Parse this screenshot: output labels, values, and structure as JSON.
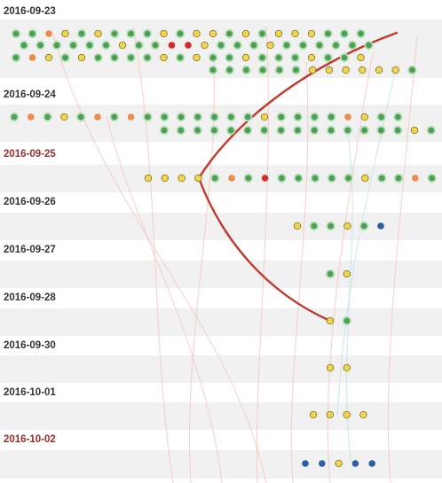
{
  "colors": {
    "green": "#4ca054",
    "green_halo": "#b9dfbb",
    "yellow": "#f1d54a",
    "orange": "#ec8a4f",
    "red": "#d62a2a",
    "blue": "#2a5ea8",
    "date_normal": "#333333",
    "date_weekend": "#9a2e2e",
    "band": "#f1f1f1",
    "highlight_path": "#c0392b",
    "faint_link": "#f3c6bf",
    "faint_link_blue": "#bfe3ea"
  },
  "days": [
    {
      "date": "2016-09-23",
      "weekend": false,
      "rows": [
        [
          "g",
          "g",
          "o",
          "y",
          "g",
          "y",
          "g",
          "g",
          "g",
          "y",
          "g",
          "y",
          "y",
          "g",
          "y",
          "g",
          "y",
          "y",
          "y",
          "g",
          "g",
          "g"
        ],
        [
          "g",
          "g",
          "g",
          "g",
          "g",
          "g",
          "y",
          "g",
          "g",
          "r",
          "r",
          "y",
          "g",
          "g",
          "g",
          "y",
          "g",
          "g",
          "g",
          "g",
          "g",
          "g"
        ],
        [
          "g",
          "o",
          "y",
          "g",
          "y",
          "g",
          "g",
          "g",
          "g",
          "y",
          "g",
          "y",
          "g",
          "g",
          "y",
          "g",
          "g",
          "g",
          "y",
          "g",
          "g",
          "y"
        ],
        [
          "g",
          "g",
          "g",
          "g",
          "g",
          "g",
          "y",
          "y",
          "y",
          "y",
          "y",
          "y",
          "g"
        ]
      ]
    },
    {
      "date": "2016-09-24",
      "weekend": false,
      "rows": [
        [
          "g",
          "o",
          "g",
          "y",
          "g",
          "o",
          "g",
          "o",
          "g",
          "g",
          "g",
          "g",
          "g",
          "g",
          "g",
          "y",
          "g",
          "g",
          "g",
          "g",
          "o",
          "y",
          "g",
          "g"
        ],
        [
          "g",
          "g",
          "g",
          "g",
          "g",
          "g",
          "g",
          "g",
          "g",
          "g",
          "g",
          "g",
          "g",
          "g",
          "g",
          "y",
          "g"
        ]
      ]
    },
    {
      "date": "2016-09-25",
      "weekend": true,
      "rows": [
        [
          "y",
          "y",
          "y",
          "y",
          "g",
          "o",
          "g",
          "r",
          "g",
          "g",
          "g",
          "g",
          "g",
          "y",
          "g",
          "g",
          "o",
          "g"
        ]
      ]
    },
    {
      "date": "2016-09-26",
      "weekend": false,
      "rows": [
        [
          "y",
          "g",
          "g",
          "y",
          "g",
          "b"
        ]
      ]
    },
    {
      "date": "2016-09-27",
      "weekend": false,
      "rows": [
        [
          "g",
          "y"
        ]
      ]
    },
    {
      "date": "2016-09-28",
      "weekend": false,
      "rows": [
        [
          "y",
          "g"
        ]
      ]
    },
    {
      "date": "2016-09-30",
      "weekend": false,
      "rows": [
        [
          "y",
          "y"
        ]
      ]
    },
    {
      "date": "2016-10-01",
      "weekend": false,
      "rows": [
        [
          "y",
          "y",
          "y",
          "y"
        ]
      ]
    },
    {
      "date": "2016-10-02",
      "weekend": true,
      "rows": [
        [
          "b",
          "b",
          "y",
          "b",
          "b"
        ]
      ]
    }
  ]
}
